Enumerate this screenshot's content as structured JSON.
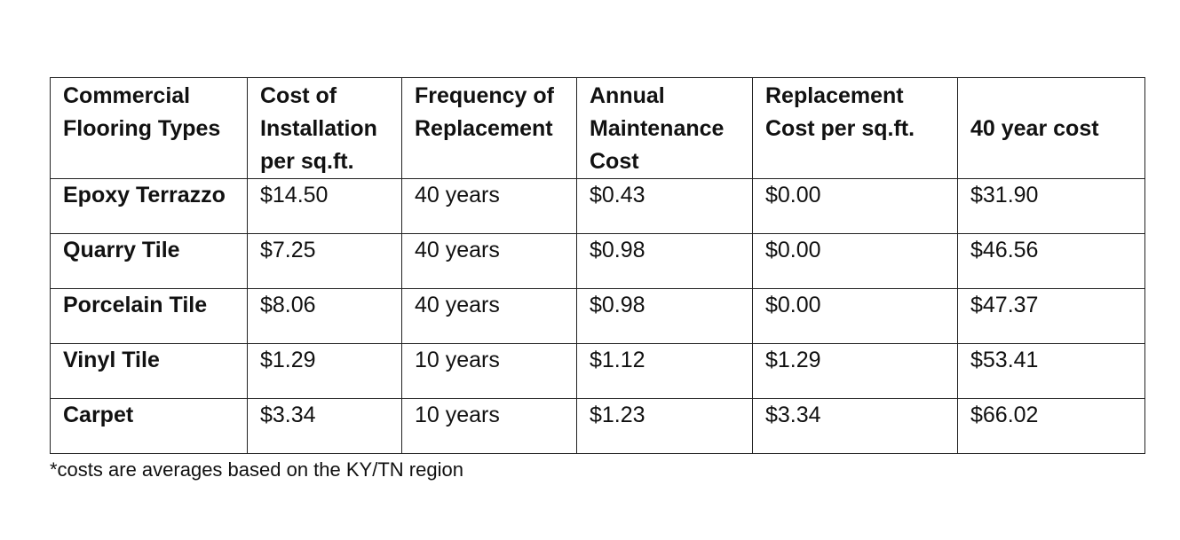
{
  "table": {
    "headers": [
      {
        "lines": [
          "Commercial",
          "Flooring Types"
        ]
      },
      {
        "lines": [
          "Cost of",
          "Installation",
          "per sq.ft."
        ]
      },
      {
        "lines": [
          "Frequency of",
          "Replacement"
        ]
      },
      {
        "lines": [
          "Annual",
          "Maintenance",
          "Cost"
        ]
      },
      {
        "lines": [
          "Replacement",
          "Cost per sq.ft."
        ]
      },
      {
        "lines": [
          "40 year cost"
        ]
      }
    ],
    "rows": [
      {
        "label": "Epoxy Terrazzo",
        "install": "$14.50",
        "frequency": "40 years",
        "maintenance": "$0.43",
        "replacement": "$0.00",
        "forty_year": "$31.90"
      },
      {
        "label": "Quarry Tile",
        "install": "$7.25",
        "frequency": "40 years",
        "maintenance": "$0.98",
        "replacement": "$0.00",
        "forty_year": "$46.56"
      },
      {
        "label": "Porcelain Tile",
        "install": "$8.06",
        "frequency": "40 years",
        "maintenance": "$0.98",
        "replacement": "$0.00",
        "forty_year": "$47.37"
      },
      {
        "label": "Vinyl Tile",
        "install": "$1.29",
        "frequency": "10 years",
        "maintenance": "$1.12",
        "replacement": "$1.29",
        "forty_year": "$53.41"
      },
      {
        "label": "Carpet",
        "install": "$3.34",
        "frequency": "10 years",
        "maintenance": "$1.23",
        "replacement": "$3.34",
        "forty_year": "$66.02"
      }
    ]
  },
  "footnote": "*costs are averages based on the KY/TN region"
}
